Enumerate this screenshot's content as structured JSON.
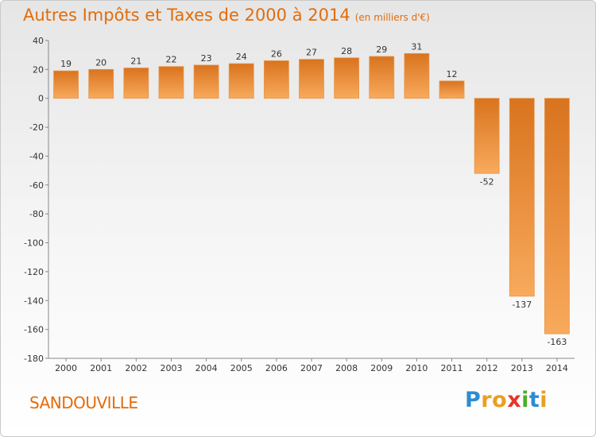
{
  "title": "Autres Impôts et Taxes de 2000 à 2014",
  "title_unit": "(en milliers d'€)",
  "commune": "SANDOUVILLE",
  "logo": {
    "text": "Proxiti",
    "letters": [
      "P",
      "r",
      "o",
      "x",
      "i",
      "t",
      "i"
    ],
    "colors": [
      "#2e8bd0",
      "#e8a020",
      "#e8a020",
      "#e8352a",
      "#4caf2a",
      "#2e8bd0",
      "#e8a020"
    ]
  },
  "colors": {
    "accent": "#e36c0a",
    "bar_light": "#f8aa5c",
    "bar_dark": "#d9731e"
  },
  "chart_data": {
    "type": "bar",
    "title": "Autres Impôts et Taxes de 2000 à 2014",
    "xlabel": "",
    "ylabel": "",
    "categories": [
      "2000",
      "2001",
      "2002",
      "2003",
      "2004",
      "2005",
      "2006",
      "2007",
      "2008",
      "2009",
      "2010",
      "2011",
      "2012",
      "2013",
      "2014"
    ],
    "values": [
      19,
      20,
      21,
      22,
      23,
      24,
      26,
      27,
      28,
      29,
      31,
      12,
      -52,
      -137,
      -163
    ],
    "value_labels": [
      "19",
      "20",
      "21",
      "22",
      "23",
      "24",
      "26",
      "27",
      "28",
      "29",
      "31",
      "12",
      "-52",
      "-137",
      "-163"
    ],
    "ylim": [
      -180,
      40
    ],
    "yticks": [
      40,
      20,
      0,
      -20,
      -40,
      -60,
      -80,
      -100,
      -120,
      -140,
      -160,
      -180
    ],
    "grid": false,
    "legend": "none"
  }
}
